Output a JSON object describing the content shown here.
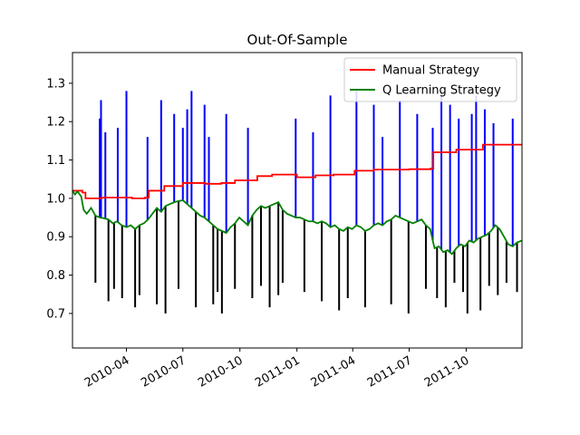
{
  "chart_data": {
    "type": "line",
    "title": "Out-Of-Sample",
    "xlabel": "",
    "ylabel": "",
    "x_range": [
      "2010-01-04",
      "2011-12-30"
    ],
    "ylim": [
      0.61,
      1.38
    ],
    "grid": false,
    "legend_position": "upper right",
    "x_ticks": [
      {
        "date": "2010-04-01",
        "label": "2010-04"
      },
      {
        "date": "2010-07-01",
        "label": "2010-07"
      },
      {
        "date": "2010-10-01",
        "label": "2010-10"
      },
      {
        "date": "2011-01-01",
        "label": "2011-01"
      },
      {
        "date": "2011-04-01",
        "label": "2011-04"
      },
      {
        "date": "2011-07-01",
        "label": "2011-07"
      },
      {
        "date": "2011-10-01",
        "label": "2011-10"
      }
    ],
    "y_ticks": [
      0.7,
      0.8,
      0.9,
      1.0,
      1.1,
      1.2,
      1.3
    ],
    "y_tick_labels": [
      "0.7",
      "0.8",
      "0.9",
      "1.0",
      "1.1",
      "1.2",
      "1.3"
    ],
    "series": [
      {
        "name": "Manual Strategy",
        "color": "#ff0000",
        "step": true,
        "points": [
          [
            "2010-01-04",
            1.02
          ],
          [
            "2010-01-20",
            1.015
          ],
          [
            "2010-01-25",
            1.0
          ],
          [
            "2010-02-08",
            1.0
          ],
          [
            "2010-02-20",
            1.002
          ],
          [
            "2010-04-10",
            1.0
          ],
          [
            "2010-05-01",
            1.002
          ],
          [
            "2010-05-07",
            1.02
          ],
          [
            "2010-06-01",
            1.032
          ],
          [
            "2010-07-01",
            1.04
          ],
          [
            "2010-08-06",
            1.038
          ],
          [
            "2010-09-01",
            1.04
          ],
          [
            "2010-09-23",
            1.047
          ],
          [
            "2010-10-29",
            1.058
          ],
          [
            "2010-11-22",
            1.062
          ],
          [
            "2011-01-01",
            1.055
          ],
          [
            "2011-01-31",
            1.06
          ],
          [
            "2011-03-01",
            1.062
          ],
          [
            "2011-04-04",
            1.072
          ],
          [
            "2011-05-05",
            1.075
          ],
          [
            "2011-07-01",
            1.076
          ],
          [
            "2011-08-05",
            1.078
          ],
          [
            "2011-08-09",
            1.12
          ],
          [
            "2011-09-15",
            1.127
          ],
          [
            "2011-10-28",
            1.14
          ],
          [
            "2011-12-30",
            1.14
          ]
        ]
      },
      {
        "name": "Q Learning Strategy",
        "color": "#008000",
        "step": false,
        "points": [
          [
            "2010-01-04",
            1.02
          ],
          [
            "2010-01-08",
            1.01
          ],
          [
            "2010-01-12",
            1.018
          ],
          [
            "2010-01-18",
            1.005
          ],
          [
            "2010-01-22",
            0.97
          ],
          [
            "2010-01-27",
            0.96
          ],
          [
            "2010-02-03",
            0.975
          ],
          [
            "2010-02-10",
            0.955
          ],
          [
            "2010-02-17",
            0.95
          ],
          [
            "2010-02-24",
            0.948
          ],
          [
            "2010-03-03",
            0.945
          ],
          [
            "2010-03-10",
            0.935
          ],
          [
            "2010-03-17",
            0.94
          ],
          [
            "2010-03-24",
            0.93
          ],
          [
            "2010-04-01",
            0.925
          ],
          [
            "2010-04-08",
            0.93
          ],
          [
            "2010-04-15",
            0.92
          ],
          [
            "2010-04-22",
            0.93
          ],
          [
            "2010-04-29",
            0.935
          ],
          [
            "2010-05-06",
            0.945
          ],
          [
            "2010-05-13",
            0.96
          ],
          [
            "2010-05-20",
            0.975
          ],
          [
            "2010-05-27",
            0.965
          ],
          [
            "2010-06-03",
            0.98
          ],
          [
            "2010-06-10",
            0.985
          ],
          [
            "2010-06-17",
            0.99
          ],
          [
            "2010-06-24",
            0.993
          ],
          [
            "2010-07-01",
            0.995
          ],
          [
            "2010-07-08",
            0.985
          ],
          [
            "2010-07-15",
            0.975
          ],
          [
            "2010-07-22",
            0.965
          ],
          [
            "2010-07-29",
            0.955
          ],
          [
            "2010-08-05",
            0.95
          ],
          [
            "2010-08-12",
            0.94
          ],
          [
            "2010-08-19",
            0.93
          ],
          [
            "2010-08-26",
            0.92
          ],
          [
            "2010-09-02",
            0.915
          ],
          [
            "2010-09-09",
            0.91
          ],
          [
            "2010-09-16",
            0.925
          ],
          [
            "2010-09-23",
            0.935
          ],
          [
            "2010-09-30",
            0.95
          ],
          [
            "2010-10-07",
            0.94
          ],
          [
            "2010-10-14",
            0.93
          ],
          [
            "2010-10-21",
            0.955
          ],
          [
            "2010-10-28",
            0.97
          ],
          [
            "2010-11-04",
            0.98
          ],
          [
            "2010-11-11",
            0.975
          ],
          [
            "2010-11-18",
            0.98
          ],
          [
            "2010-11-25",
            0.985
          ],
          [
            "2010-12-02",
            0.99
          ],
          [
            "2010-12-09",
            0.97
          ],
          [
            "2010-12-16",
            0.96
          ],
          [
            "2010-12-23",
            0.955
          ],
          [
            "2010-12-30",
            0.95
          ],
          [
            "2011-01-06",
            0.95
          ],
          [
            "2011-01-13",
            0.945
          ],
          [
            "2011-01-20",
            0.94
          ],
          [
            "2011-01-27",
            0.94
          ],
          [
            "2011-02-03",
            0.935
          ],
          [
            "2011-02-10",
            0.94
          ],
          [
            "2011-02-17",
            0.935
          ],
          [
            "2011-02-24",
            0.925
          ],
          [
            "2011-03-03",
            0.93
          ],
          [
            "2011-03-10",
            0.92
          ],
          [
            "2011-03-17",
            0.915
          ],
          [
            "2011-03-24",
            0.925
          ],
          [
            "2011-03-31",
            0.92
          ],
          [
            "2011-04-07",
            0.93
          ],
          [
            "2011-04-14",
            0.925
          ],
          [
            "2011-04-21",
            0.915
          ],
          [
            "2011-04-28",
            0.92
          ],
          [
            "2011-05-05",
            0.93
          ],
          [
            "2011-05-12",
            0.935
          ],
          [
            "2011-05-19",
            0.93
          ],
          [
            "2011-05-26",
            0.94
          ],
          [
            "2011-06-02",
            0.945
          ],
          [
            "2011-06-09",
            0.955
          ],
          [
            "2011-06-16",
            0.95
          ],
          [
            "2011-06-23",
            0.945
          ],
          [
            "2011-06-30",
            0.94
          ],
          [
            "2011-07-07",
            0.935
          ],
          [
            "2011-07-14",
            0.94
          ],
          [
            "2011-07-21",
            0.945
          ],
          [
            "2011-07-28",
            0.93
          ],
          [
            "2011-08-04",
            0.92
          ],
          [
            "2011-08-08",
            0.89
          ],
          [
            "2011-08-11",
            0.87
          ],
          [
            "2011-08-18",
            0.875
          ],
          [
            "2011-08-25",
            0.86
          ],
          [
            "2011-09-01",
            0.865
          ],
          [
            "2011-09-08",
            0.855
          ],
          [
            "2011-09-15",
            0.87
          ],
          [
            "2011-09-22",
            0.88
          ],
          [
            "2011-09-29",
            0.875
          ],
          [
            "2011-10-06",
            0.89
          ],
          [
            "2011-10-13",
            0.885
          ],
          [
            "2011-10-20",
            0.895
          ],
          [
            "2011-10-27",
            0.9
          ],
          [
            "2011-11-03",
            0.905
          ],
          [
            "2011-11-10",
            0.915
          ],
          [
            "2011-11-17",
            0.93
          ],
          [
            "2011-11-24",
            0.92
          ],
          [
            "2011-12-01",
            0.9
          ],
          [
            "2011-12-08",
            0.88
          ],
          [
            "2011-12-15",
            0.875
          ],
          [
            "2011-12-22",
            0.885
          ],
          [
            "2011-12-30",
            0.89
          ]
        ]
      }
    ],
    "vertical_markers": {
      "long_color": "#0000ff",
      "short_color": "#000000",
      "lines": [
        {
          "date": "2010-02-10",
          "type": "short"
        },
        {
          "date": "2010-02-17",
          "type": "long"
        },
        {
          "date": "2010-02-19",
          "type": "long"
        },
        {
          "date": "2010-02-26",
          "type": "long"
        },
        {
          "date": "2010-03-03",
          "type": "short"
        },
        {
          "date": "2010-03-12",
          "type": "short"
        },
        {
          "date": "2010-03-18",
          "type": "long"
        },
        {
          "date": "2010-03-25",
          "type": "short"
        },
        {
          "date": "2010-04-01",
          "type": "long"
        },
        {
          "date": "2010-04-15",
          "type": "short"
        },
        {
          "date": "2010-04-22",
          "type": "short"
        },
        {
          "date": "2010-05-05",
          "type": "long"
        },
        {
          "date": "2010-05-20",
          "type": "short"
        },
        {
          "date": "2010-05-27",
          "type": "long"
        },
        {
          "date": "2010-06-03",
          "type": "short"
        },
        {
          "date": "2010-06-17",
          "type": "long"
        },
        {
          "date": "2010-06-24",
          "type": "short"
        },
        {
          "date": "2010-07-01",
          "type": "long"
        },
        {
          "date": "2010-07-08",
          "type": "long"
        },
        {
          "date": "2010-07-15",
          "type": "long"
        },
        {
          "date": "2010-07-22",
          "type": "short"
        },
        {
          "date": "2010-08-05",
          "type": "long"
        },
        {
          "date": "2010-08-12",
          "type": "long"
        },
        {
          "date": "2010-08-19",
          "type": "short"
        },
        {
          "date": "2010-08-26",
          "type": "short"
        },
        {
          "date": "2010-09-02",
          "type": "short"
        },
        {
          "date": "2010-09-09",
          "type": "long"
        },
        {
          "date": "2010-09-23",
          "type": "short"
        },
        {
          "date": "2010-10-14",
          "type": "long"
        },
        {
          "date": "2010-10-21",
          "type": "short"
        },
        {
          "date": "2010-11-04",
          "type": "short"
        },
        {
          "date": "2010-11-18",
          "type": "short"
        },
        {
          "date": "2010-12-02",
          "type": "short"
        },
        {
          "date": "2010-12-09",
          "type": "short"
        },
        {
          "date": "2010-12-30",
          "type": "long"
        },
        {
          "date": "2011-01-13",
          "type": "short"
        },
        {
          "date": "2011-01-27",
          "type": "long"
        },
        {
          "date": "2011-02-10",
          "type": "short"
        },
        {
          "date": "2011-02-24",
          "type": "long"
        },
        {
          "date": "2011-03-10",
          "type": "short"
        },
        {
          "date": "2011-03-24",
          "type": "short"
        },
        {
          "date": "2011-04-07",
          "type": "long"
        },
        {
          "date": "2011-04-21",
          "type": "short"
        },
        {
          "date": "2011-05-05",
          "type": "long"
        },
        {
          "date": "2011-05-19",
          "type": "long"
        },
        {
          "date": "2011-06-02",
          "type": "short"
        },
        {
          "date": "2011-06-16",
          "type": "long"
        },
        {
          "date": "2011-06-30",
          "type": "short"
        },
        {
          "date": "2011-07-14",
          "type": "long"
        },
        {
          "date": "2011-07-28",
          "type": "short"
        },
        {
          "date": "2011-08-08",
          "type": "long"
        },
        {
          "date": "2011-08-15",
          "type": "short"
        },
        {
          "date": "2011-08-22",
          "type": "long"
        },
        {
          "date": "2011-08-29",
          "type": "short"
        },
        {
          "date": "2011-09-05",
          "type": "long"
        },
        {
          "date": "2011-09-12",
          "type": "short"
        },
        {
          "date": "2011-09-19",
          "type": "long"
        },
        {
          "date": "2011-09-26",
          "type": "short"
        },
        {
          "date": "2011-10-03",
          "type": "short"
        },
        {
          "date": "2011-10-10",
          "type": "long"
        },
        {
          "date": "2011-10-17",
          "type": "long"
        },
        {
          "date": "2011-10-24",
          "type": "short"
        },
        {
          "date": "2011-10-31",
          "type": "long"
        },
        {
          "date": "2011-11-07",
          "type": "short"
        },
        {
          "date": "2011-11-14",
          "type": "long"
        },
        {
          "date": "2011-11-21",
          "type": "short"
        },
        {
          "date": "2011-12-05",
          "type": "short"
        },
        {
          "date": "2011-12-15",
          "type": "long"
        },
        {
          "date": "2011-12-22",
          "type": "short"
        }
      ]
    }
  }
}
